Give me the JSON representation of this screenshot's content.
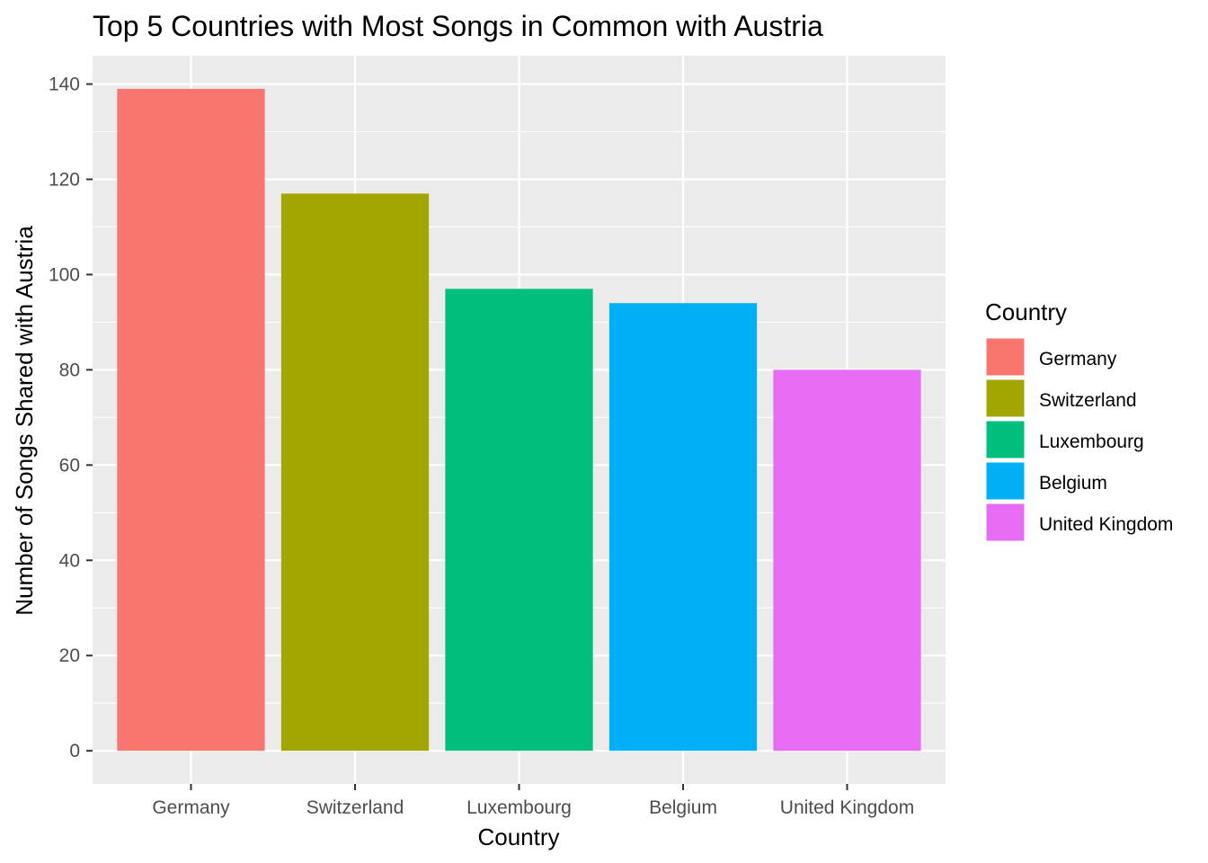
{
  "chart_data": {
    "type": "bar",
    "title": "Top 5 Countries with Most Songs in Common with Austria",
    "xlabel": "Country",
    "ylabel": "Number of Songs Shared with Austria",
    "categories": [
      "Germany",
      "Switzerland",
      "Luxembourg",
      "Belgium",
      "United Kingdom"
    ],
    "values": [
      139,
      117,
      97,
      94,
      80
    ],
    "colors": [
      "#F8766D",
      "#A3A500",
      "#00BF7D",
      "#00B0F6",
      "#E76BF3"
    ],
    "ylim": [
      -6.95,
      145.95
    ],
    "yticks": [
      0,
      20,
      40,
      60,
      80,
      100,
      120,
      140
    ],
    "grid": true,
    "panel_background": "#EBEBEB",
    "legend": {
      "title": "Country",
      "position": "right",
      "entries": [
        "Germany",
        "Switzerland",
        "Luxembourg",
        "Belgium",
        "United Kingdom"
      ]
    }
  }
}
